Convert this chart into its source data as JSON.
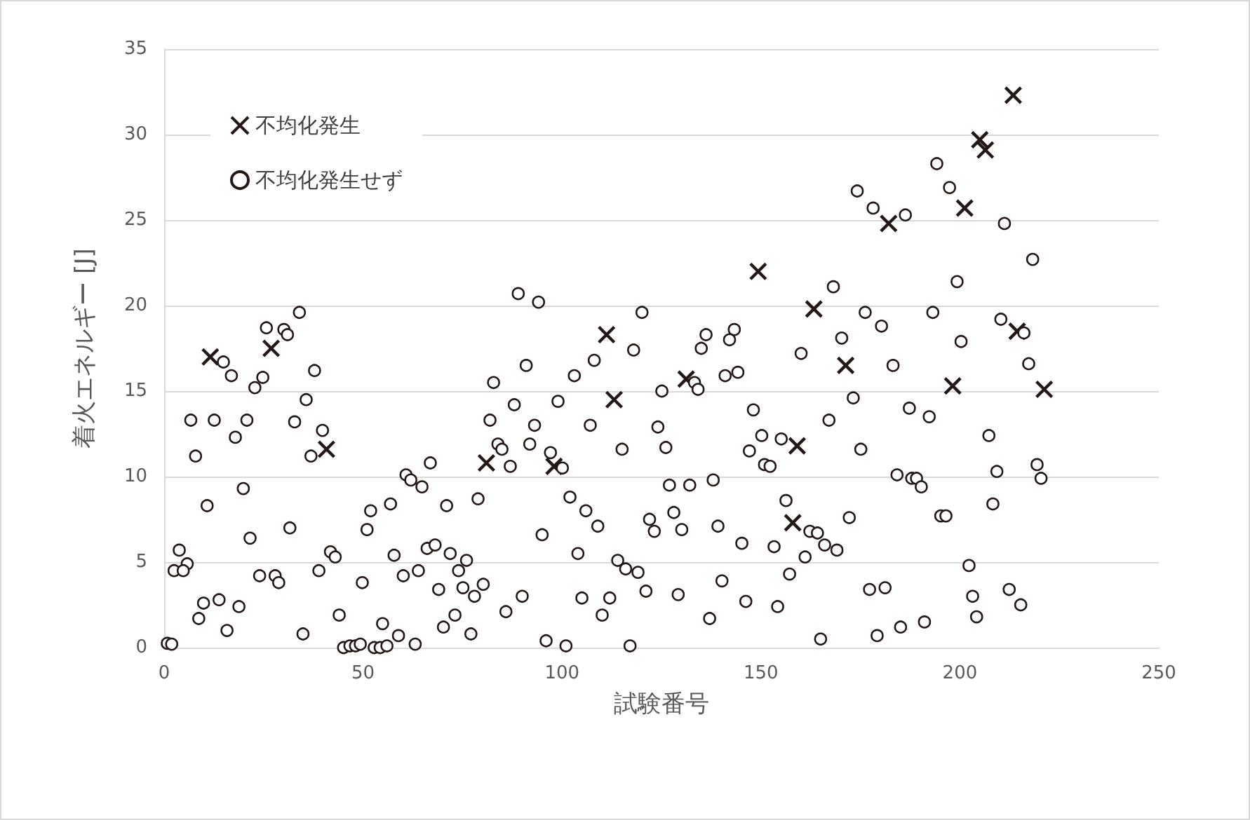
{
  "chart_data": {
    "type": "scatter",
    "xlabel": "試験番号",
    "ylabel": "着火エネルギー [J]",
    "xlim": [
      0,
      250
    ],
    "xticks": [
      0,
      50,
      100,
      150,
      200,
      250
    ],
    "ylim": [
      0,
      35
    ],
    "yticks": [
      0,
      5,
      10,
      15,
      20,
      25,
      30,
      35
    ],
    "grid": "y",
    "legend": "top left",
    "series": [
      {
        "name": "不均化発生",
        "color": "#231815",
        "marker": "cross",
        "x": [
          11.6,
          26.9,
          40.8,
          81.0,
          98.0,
          111.2,
          113.1,
          131.2,
          149.3,
          158.0,
          159.1,
          163.3,
          171.3,
          182.1,
          198.2,
          201.2,
          205.0,
          206.4,
          213.4,
          214.4,
          221.2
        ],
        "values": [
          17.0,
          17.5,
          11.6,
          10.8,
          10.6,
          18.3,
          14.5,
          15.7,
          22.0,
          7.3,
          11.8,
          19.8,
          16.5,
          24.8,
          15.3,
          25.7,
          29.7,
          29.1,
          32.3,
          18.5,
          15.1
        ]
      },
      {
        "name": "不均化発生せず",
        "color": "#231815",
        "marker": "circle",
        "x": [
          34.0,
          25.7,
          30.1,
          31.0,
          14.9,
          16.9,
          37.8,
          24.8,
          22.8,
          35.7,
          6.7,
          12.6,
          20.8,
          32.8,
          17.9,
          39.8,
          36.9,
          7.9,
          19.9,
          10.8,
          31.6,
          21.6,
          3.8,
          5.8,
          2.5,
          4.8,
          24.0,
          27.9,
          28.8,
          38.9,
          41.8,
          43.0,
          44.0,
          34.9,
          9.9,
          13.8,
          18.8,
          8.7,
          15.8,
          0.8,
          1.9,
          45.1,
          46.7,
          48.1,
          49.3,
          52.8,
          54.3,
          56.0,
          63.1,
          58.9,
          54.9,
          49.8,
          51.0,
          51.9,
          56.9,
          60.8,
          62.0,
          66.9,
          64.8,
          57.8,
          60.1,
          63.9,
          66.1,
          68.1,
          71.0,
          69.0,
          71.9,
          74.0,
          76.0,
          75.1,
          80.2,
          78.0,
          70.2,
          73.1,
          77.1,
          78.9,
          82.8,
          81.9,
          89.0,
          94.1,
          120.1,
          91.0,
          103.1,
          108.1,
          118.0,
          136.2,
          135.0,
          143.3,
          142.1,
          141.0,
          144.2,
          160.1,
          88.0,
          99.0,
          93.1,
          107.1,
          125.1,
          133.3,
          134.2,
          124.1,
          126.1,
          115.1,
          148.1,
          150.2,
          155.1,
          147.1,
          150.9,
          152.3,
          83.9,
          84.9,
          91.9,
          87.0,
          97.1,
          100.1,
          102.0,
          95.0,
          106.0,
          109.0,
          104.0,
          127.0,
          132.1,
          138.0,
          122.0,
          123.2,
          128.1,
          130.1,
          139.2,
          145.2,
          153.3,
          156.3,
          162.3,
          164.2,
          166.0,
          161.1,
          157.2,
          114.0,
          116.0,
          119.1,
          121.1,
          129.2,
          140.2,
          146.2,
          154.2,
          137.1,
          105.0,
          112.0,
          110.1,
          90.0,
          85.9,
          96.0,
          101.0,
          117.1,
          165.0,
          174.2,
          178.2,
          186.3,
          194.2,
          197.4,
          211.2,
          218.3,
          199.3,
          168.2,
          176.2,
          180.3,
          170.3,
          193.2,
          200.3,
          210.3,
          216.1,
          183.2,
          217.3,
          173.2,
          167.1,
          187.3,
          192.3,
          207.3,
          175.1,
          184.2,
          187.9,
          189.1,
          190.3,
          209.3,
          219.4,
          220.4,
          208.3,
          195.2,
          196.5,
          172.2,
          169.1,
          202.3,
          177.3,
          181.2,
          203.2,
          212.4,
          215.3,
          204.2,
          191.1,
          185.1,
          179.2
        ],
        "values": [
          19.6,
          18.7,
          18.6,
          18.3,
          16.7,
          15.9,
          16.2,
          15.8,
          15.2,
          14.5,
          13.3,
          13.3,
          13.3,
          13.2,
          12.3,
          12.7,
          11.2,
          11.2,
          9.3,
          8.3,
          7.0,
          6.4,
          5.7,
          4.9,
          4.5,
          4.5,
          4.2,
          4.2,
          3.8,
          4.5,
          5.6,
          5.3,
          1.9,
          0.8,
          2.6,
          2.8,
          2.4,
          1.7,
          1.0,
          0.25,
          0.2,
          0.0,
          0.1,
          0.1,
          0.2,
          0.0,
          0.0,
          0.1,
          0.2,
          0.7,
          1.4,
          3.8,
          6.9,
          8.0,
          8.4,
          10.1,
          9.8,
          10.8,
          9.4,
          5.4,
          4.2,
          4.5,
          5.8,
          6.0,
          8.3,
          3.4,
          5.5,
          4.5,
          5.1,
          3.5,
          3.7,
          3.0,
          1.2,
          1.9,
          0.8,
          8.7,
          15.5,
          13.3,
          20.7,
          20.2,
          19.6,
          16.5,
          15.9,
          16.8,
          17.4,
          18.3,
          17.5,
          18.6,
          18.0,
          15.9,
          16.1,
          17.2,
          14.2,
          14.4,
          13.0,
          13.0,
          15.0,
          15.5,
          15.1,
          12.9,
          11.7,
          11.6,
          13.9,
          12.4,
          12.2,
          11.5,
          10.7,
          10.6,
          11.9,
          11.6,
          11.9,
          10.6,
          11.4,
          10.5,
          8.8,
          6.6,
          8.0,
          7.1,
          5.5,
          9.5,
          9.5,
          9.8,
          7.5,
          6.8,
          7.9,
          6.9,
          7.1,
          6.1,
          5.9,
          8.6,
          6.8,
          6.7,
          6.0,
          5.3,
          4.3,
          5.1,
          4.6,
          4.4,
          3.3,
          3.1,
          3.9,
          2.7,
          2.4,
          1.7,
          2.9,
          2.9,
          1.9,
          3.0,
          2.1,
          0.4,
          0.1,
          0.1,
          0.5,
          26.7,
          25.7,
          25.3,
          28.3,
          26.9,
          24.8,
          22.7,
          21.4,
          21.1,
          19.6,
          18.8,
          18.1,
          19.6,
          17.9,
          19.2,
          18.4,
          16.5,
          16.6,
          14.6,
          13.3,
          14.0,
          13.5,
          12.4,
          11.6,
          10.1,
          9.9,
          9.9,
          9.4,
          10.3,
          10.7,
          9.9,
          8.4,
          7.7,
          7.7,
          7.6,
          5.7,
          4.8,
          3.4,
          3.5,
          3.0,
          3.4,
          2.5,
          1.8,
          1.5,
          1.2,
          0.7
        ]
      }
    ]
  }
}
